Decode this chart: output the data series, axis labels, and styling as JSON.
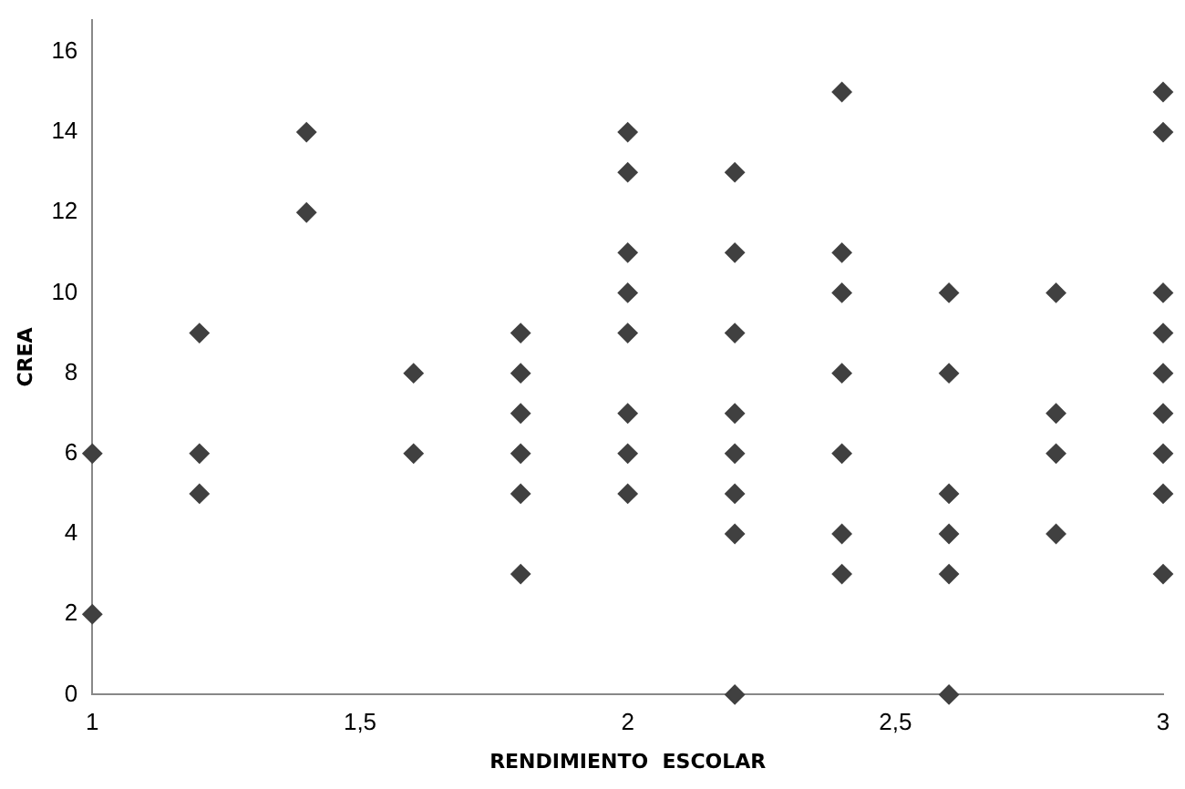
{
  "chart_data": {
    "type": "scatter",
    "xlabel": "RENDIMIENTO  ESCOLAR",
    "ylabel": "CREA",
    "x": [
      1,
      1,
      1.2,
      1.2,
      1.2,
      1.4,
      1.4,
      1.6,
      1.6,
      1.8,
      1.8,
      1.8,
      1.8,
      1.8,
      1.8,
      2,
      2,
      2,
      2,
      2,
      2,
      2,
      2,
      2.2,
      2.2,
      2.2,
      2.2,
      2.2,
      2.2,
      2.2,
      2.2,
      2.4,
      2.4,
      2.4,
      2.4,
      2.4,
      2.4,
      2.4,
      2.6,
      2.6,
      2.6,
      2.6,
      2.6,
      2.6,
      2.8,
      2.8,
      2.8,
      2.8,
      3,
      3,
      3,
      3,
      3,
      3,
      3,
      3,
      3
    ],
    "values": [
      6,
      2,
      9,
      6,
      5,
      14,
      12,
      8,
      6,
      9,
      8,
      7,
      6,
      5,
      3,
      14,
      13,
      11,
      10,
      9,
      7,
      6,
      5,
      13,
      11,
      9,
      7,
      6,
      5,
      4,
      0,
      15,
      11,
      10,
      8,
      6,
      4,
      3,
      10,
      8,
      5,
      4,
      3,
      0,
      10,
      7,
      6,
      4,
      15,
      14,
      10,
      9,
      8,
      7,
      6,
      5,
      3
    ],
    "color": "#404040",
    "marker": "diamond",
    "xlim": [
      1,
      3
    ],
    "xticks": [
      1,
      {
        "value": 1.5,
        "label": "1,5"
      },
      2,
      {
        "value": 2.5,
        "label": "2,5"
      },
      3
    ],
    "ylim": [
      0,
      16.8
    ],
    "yticks": [
      0,
      2,
      4,
      6,
      8,
      10,
      12,
      14,
      16
    ],
    "grid": false,
    "legend": false
  }
}
